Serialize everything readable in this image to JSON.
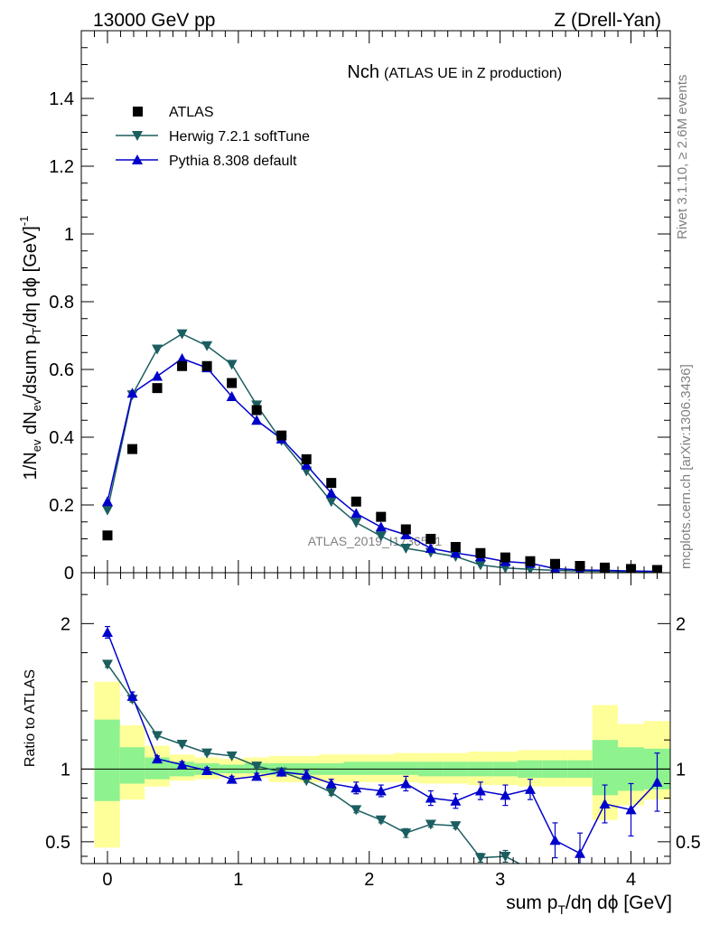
{
  "header": {
    "left": "13000 GeV pp",
    "right": "Z (Drell-Yan)"
  },
  "side_text": {
    "rivet": "Rivet 3.1.10, ≥ 2.6M events",
    "mcplots": "mcplots.cern.ch [arXiv:1306.3436]"
  },
  "colors": {
    "atlas": "#000000",
    "herwig": "#1b5e60",
    "pythia": "#0000cc",
    "band_inner": "#8ef28e",
    "band_outer": "#ffff99"
  },
  "chart_data": [
    {
      "type": "scatter",
      "title": "Nch",
      "subtitle": "(ATLAS UE in Z production)",
      "ylabel": "1/N_ev dN_ev/dsum p_T/dη dϕ [GeV]^-1",
      "watermark": "ATLAS_2019_I1736531",
      "xlim": [
        -0.2,
        4.3
      ],
      "ylim": [
        0,
        1.6
      ],
      "yticks": [
        0,
        0.2,
        0.4,
        0.6,
        0.8,
        1,
        1.2,
        1.4
      ],
      "ytick_labels": [
        "0",
        "0.2",
        "0.4",
        "0.6",
        "0.8",
        "1",
        "1.2",
        "1.4"
      ],
      "legend_position": "top-left",
      "x": [
        0,
        0.19,
        0.38,
        0.57,
        0.76,
        0.95,
        1.14,
        1.33,
        1.52,
        1.71,
        1.9,
        2.09,
        2.28,
        2.47,
        2.66,
        2.85,
        3.04,
        3.23,
        3.42,
        3.61,
        3.8,
        4.0,
        4.2
      ],
      "series": [
        {
          "name": "ATLAS",
          "marker": "square",
          "values": [
            0.11,
            0.365,
            0.545,
            0.61,
            0.61,
            0.56,
            0.48,
            0.405,
            0.335,
            0.265,
            0.21,
            0.165,
            0.128,
            0.1,
            0.076,
            0.058,
            0.045,
            0.034,
            0.026,
            0.02,
            0.015,
            0.011,
            0.008
          ]
        },
        {
          "name": "Herwig 7.2.1 softTune",
          "marker": "triangle-down",
          "values": [
            0.185,
            0.525,
            0.66,
            0.705,
            0.67,
            0.615,
            0.495,
            0.39,
            0.3,
            0.21,
            0.148,
            0.108,
            0.072,
            0.06,
            0.048,
            0.023,
            0.014,
            0.01,
            0.007,
            0.005,
            0.004,
            0.003,
            0.002
          ]
        },
        {
          "name": "Pythia 8.308 default",
          "marker": "triangle-up",
          "values": [
            0.21,
            0.53,
            0.58,
            0.632,
            0.605,
            0.52,
            0.45,
            0.395,
            0.318,
            0.235,
            0.175,
            0.135,
            0.112,
            0.072,
            0.058,
            0.047,
            0.033,
            0.028,
            0.012,
            0.008,
            0.007,
            0.005,
            0.004
          ]
        }
      ]
    },
    {
      "type": "line",
      "ylabel": "Ratio to ATLAS",
      "xlabel": "sum p_T/dη dϕ [GeV]",
      "xlim": [
        -0.2,
        4.3
      ],
      "ylim": [
        0.35,
        2.35
      ],
      "xticks": [
        0,
        1,
        2,
        3,
        4
      ],
      "xtick_labels": [
        "0",
        "1",
        "2",
        "3",
        "4"
      ],
      "yticks": [
        0.5,
        1,
        2
      ],
      "ytick_labels": [
        "0.5",
        "1",
        "2"
      ],
      "x": [
        0,
        0.19,
        0.38,
        0.57,
        0.76,
        0.95,
        1.14,
        1.33,
        1.52,
        1.71,
        1.9,
        2.09,
        2.28,
        2.47,
        2.66,
        2.85,
        3.04,
        3.23,
        3.42,
        3.61,
        3.8,
        4.0,
        4.2
      ],
      "band_edges": [
        -0.1,
        0.095,
        0.285,
        0.475,
        0.665,
        0.855,
        1.045,
        1.235,
        1.425,
        1.615,
        1.805,
        1.995,
        2.185,
        2.375,
        2.565,
        2.755,
        2.945,
        3.135,
        3.325,
        3.515,
        3.705,
        3.9,
        4.1,
        4.3
      ],
      "band_inner_low": [
        0.78,
        0.9,
        0.93,
        0.95,
        0.96,
        0.97,
        0.97,
        0.96,
        0.96,
        0.96,
        0.96,
        0.96,
        0.96,
        0.95,
        0.95,
        0.95,
        0.95,
        0.94,
        0.94,
        0.94,
        0.82,
        0.85,
        0.86
      ],
      "band_inner_high": [
        1.34,
        1.15,
        1.08,
        1.05,
        1.04,
        1.03,
        1.04,
        1.04,
        1.04,
        1.04,
        1.05,
        1.05,
        1.05,
        1.05,
        1.05,
        1.05,
        1.05,
        1.06,
        1.06,
        1.06,
        1.2,
        1.15,
        1.14
      ],
      "band_outer_low": [
        0.46,
        0.79,
        0.88,
        0.92,
        0.93,
        0.94,
        0.94,
        0.91,
        0.91,
        0.91,
        0.91,
        0.91,
        0.91,
        0.9,
        0.9,
        0.89,
        0.89,
        0.88,
        0.88,
        0.88,
        0.65,
        0.75,
        0.79
      ],
      "band_outer_high": [
        1.6,
        1.3,
        1.16,
        1.1,
        1.08,
        1.07,
        1.08,
        1.09,
        1.09,
        1.1,
        1.1,
        1.1,
        1.11,
        1.11,
        1.11,
        1.12,
        1.12,
        1.13,
        1.13,
        1.13,
        1.44,
        1.31,
        1.33
      ],
      "series": [
        {
          "name": "Herwig 7.2.1 softTune",
          "values": [
            1.72,
            1.48,
            1.23,
            1.17,
            1.11,
            1.09,
            1.02,
            0.98,
            0.92,
            0.84,
            0.72,
            0.65,
            0.56,
            0.62,
            0.61,
            0.39,
            0.4,
            0.31,
            null,
            null,
            null,
            null,
            null
          ],
          "errors": [
            0.02,
            0.02,
            0.01,
            0.01,
            0.01,
            0.01,
            0.01,
            0.01,
            0.01,
            0.02,
            0.02,
            0.02,
            0.03,
            0.02,
            0.02,
            0.03,
            0.04,
            0.04,
            null,
            null,
            null,
            null,
            null
          ]
        },
        {
          "name": "Pythia 8.308 default",
          "values": [
            1.94,
            1.5,
            1.07,
            1.03,
            0.99,
            0.93,
            0.95,
            0.98,
            0.96,
            0.9,
            0.87,
            0.85,
            0.9,
            0.8,
            0.78,
            0.85,
            0.82,
            0.86,
            0.51,
            0.42,
            0.76,
            0.72,
            0.91
          ],
          "errors": [
            0.04,
            0.03,
            0.02,
            0.02,
            0.02,
            0.02,
            0.02,
            0.02,
            0.03,
            0.03,
            0.04,
            0.04,
            0.05,
            0.05,
            0.05,
            0.06,
            0.07,
            0.07,
            0.12,
            0.14,
            0.13,
            0.18,
            0.2
          ]
        }
      ]
    }
  ]
}
